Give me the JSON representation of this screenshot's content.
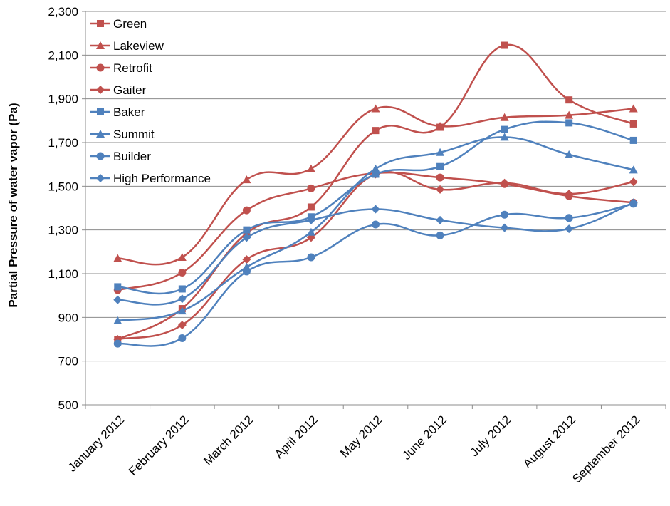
{
  "chart_data": {
    "type": "line",
    "title": "",
    "xlabel": "",
    "ylabel": "Partial Pressure of water vapor (Pa)",
    "ylim": [
      500,
      2300
    ],
    "yticks": [
      500,
      700,
      900,
      1100,
      1300,
      1500,
      1700,
      1900,
      2100,
      2300
    ],
    "ytick_labels": [
      "500",
      "700",
      "900",
      "1,100",
      "1,300",
      "1,500",
      "1,700",
      "1,900",
      "2,100",
      "2,300"
    ],
    "grid": "horizontal",
    "legend_position": "top-left",
    "smooth": true,
    "categories": [
      "January 2012",
      "February 2012",
      "March 2012",
      "April 2012",
      "May 2012",
      "June 2012",
      "July 2012",
      "August 2012",
      "September 2012"
    ],
    "series": [
      {
        "name": "Green",
        "color": "#C0504D",
        "marker": "square",
        "values": [
          800,
          940,
          1285,
          1405,
          1755,
          1770,
          2145,
          1895,
          1785
        ]
      },
      {
        "name": "Lakeview",
        "color": "#C0504D",
        "marker": "triangle",
        "values": [
          1170,
          1175,
          1530,
          1580,
          1855,
          1775,
          1815,
          1825,
          1855
        ]
      },
      {
        "name": "Retrofit",
        "color": "#C0504D",
        "marker": "circle",
        "values": [
          1025,
          1105,
          1390,
          1490,
          1560,
          1540,
          1510,
          1455,
          1425
        ]
      },
      {
        "name": "Gaiter",
        "color": "#C0504D",
        "marker": "diamond",
        "values": [
          800,
          865,
          1165,
          1265,
          1555,
          1485,
          1515,
          1465,
          1520
        ]
      },
      {
        "name": "Baker",
        "color": "#4F81BD",
        "marker": "square",
        "values": [
          1040,
          1030,
          1300,
          1360,
          1555,
          1590,
          1760,
          1790,
          1710
        ]
      },
      {
        "name": "Summit",
        "color": "#4F81BD",
        "marker": "triangle",
        "values": [
          885,
          930,
          1130,
          1290,
          1580,
          1655,
          1725,
          1645,
          1575
        ]
      },
      {
        "name": "Builder",
        "color": "#4F81BD",
        "marker": "circle",
        "values": [
          780,
          805,
          1110,
          1175,
          1325,
          1275,
          1370,
          1355,
          1420
        ]
      },
      {
        "name": "High Performance",
        "color": "#4F81BD",
        "marker": "diamond",
        "values": [
          980,
          985,
          1265,
          1345,
          1395,
          1345,
          1310,
          1305,
          1425
        ]
      }
    ]
  }
}
